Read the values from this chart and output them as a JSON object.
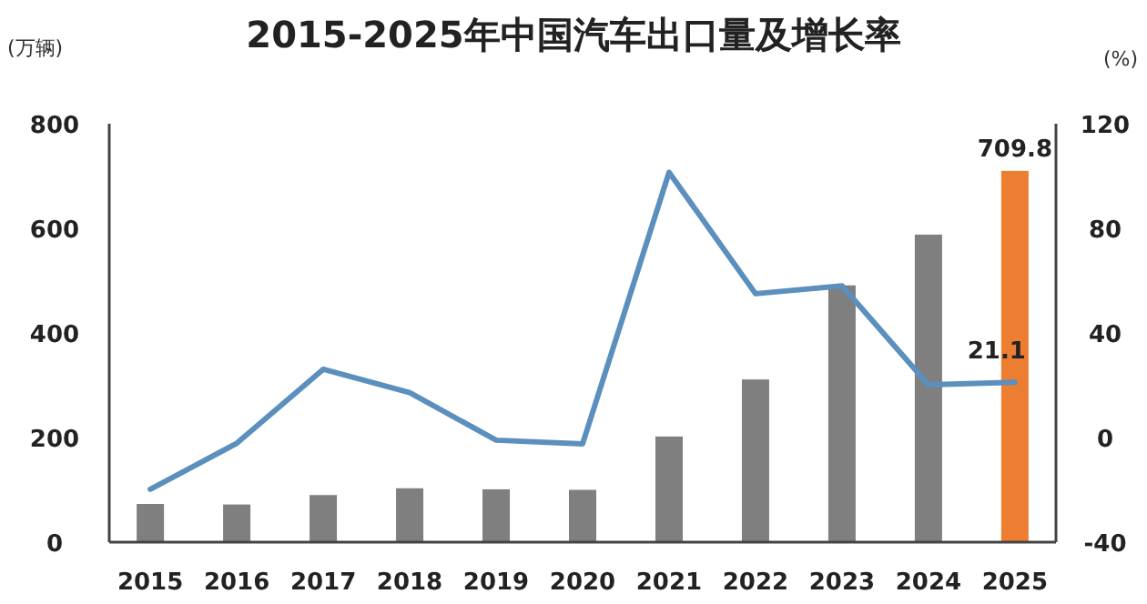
{
  "chart_data": {
    "type": "bar",
    "title": "2015-2025年中国汽车出口量及增长率",
    "ylabel": "(万辆)",
    "y2label": "(%)",
    "categories": [
      "2015",
      "2016",
      "2017",
      "2018",
      "2019",
      "2020",
      "2021",
      "2022",
      "2023",
      "2024",
      "2025"
    ],
    "series": [
      {
        "colors": [
          "#7f7f7f",
          "#7f7f7f",
          "#7f7f7f",
          "#7f7f7f",
          "#7f7f7f",
          "#7f7f7f",
          "#7f7f7f",
          "#7f7f7f",
          "#7f7f7f",
          "#7f7f7f",
          "#ed7d31"
        ],
        "values": [
          73,
          72,
          90,
          103,
          101,
          100,
          202,
          311,
          491,
          588,
          709.8
        ],
        "value_labels": [
          null,
          null,
          null,
          null,
          null,
          null,
          null,
          null,
          null,
          null,
          "709.8"
        ]
      },
      {
        "type": "line",
        "axis": "y2",
        "color": "#5b8fbd",
        "values": [
          -19.8,
          -2.2,
          26.1,
          17.2,
          -1.0,
          -2.4,
          101.4,
          55,
          58,
          20.2,
          21.1
        ],
        "value_labels": [
          null,
          null,
          null,
          null,
          null,
          null,
          null,
          null,
          null,
          null,
          "21.1"
        ]
      }
    ],
    "ylim": [
      0,
      800
    ],
    "yticks": [
      0,
      200,
      400,
      600,
      800
    ],
    "y2lim": [
      -40,
      120
    ],
    "y2ticks": [
      -40,
      0,
      40,
      80,
      120
    ]
  }
}
